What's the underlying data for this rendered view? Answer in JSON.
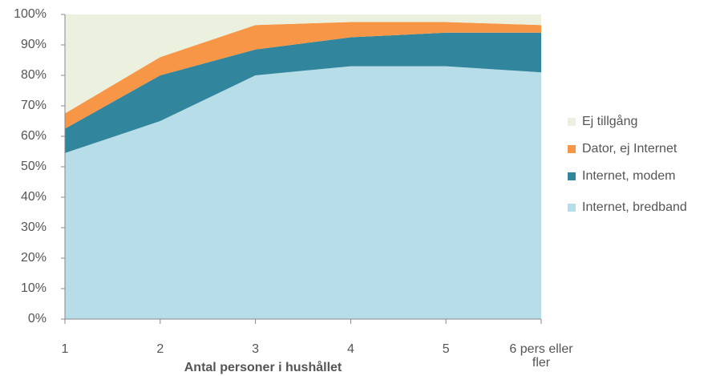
{
  "chart_data": {
    "type": "stacked-area",
    "x_label": "Antal personer i hushållet",
    "categories": [
      "1",
      "2",
      "3",
      "4",
      "5",
      "6 pers eller fler"
    ],
    "series": [
      {
        "name": "Internet, bredband",
        "color": "#b7dde8",
        "values": [
          54.5,
          65,
          80,
          83,
          83,
          81
        ]
      },
      {
        "name": "Internet, modem",
        "color": "#31859c",
        "values": [
          8,
          15,
          8.5,
          9.5,
          11,
          13
        ]
      },
      {
        "name": "Dator, ej Internet",
        "color": "#f79646",
        "values": [
          5,
          6,
          8,
          5,
          3.5,
          2.5
        ]
      },
      {
        "name": "Ej tillgång",
        "color": "#ebf1de",
        "values": [
          32.5,
          14,
          3.5,
          2.5,
          2.5,
          3.5
        ]
      }
    ],
    "ylim": [
      0,
      100
    ],
    "yticks": [
      {
        "value": 0,
        "label": "0%"
      },
      {
        "value": 10,
        "label": "10%"
      },
      {
        "value": 20,
        "label": "20%"
      },
      {
        "value": 30,
        "label": "30%"
      },
      {
        "value": 40,
        "label": "40%"
      },
      {
        "value": 50,
        "label": "50%"
      },
      {
        "value": 60,
        "label": "60%"
      },
      {
        "value": 70,
        "label": "70%"
      },
      {
        "value": 80,
        "label": "80%"
      },
      {
        "value": 90,
        "label": "90%"
      },
      {
        "value": 100,
        "label": "100%"
      }
    ],
    "legend": "right"
  }
}
